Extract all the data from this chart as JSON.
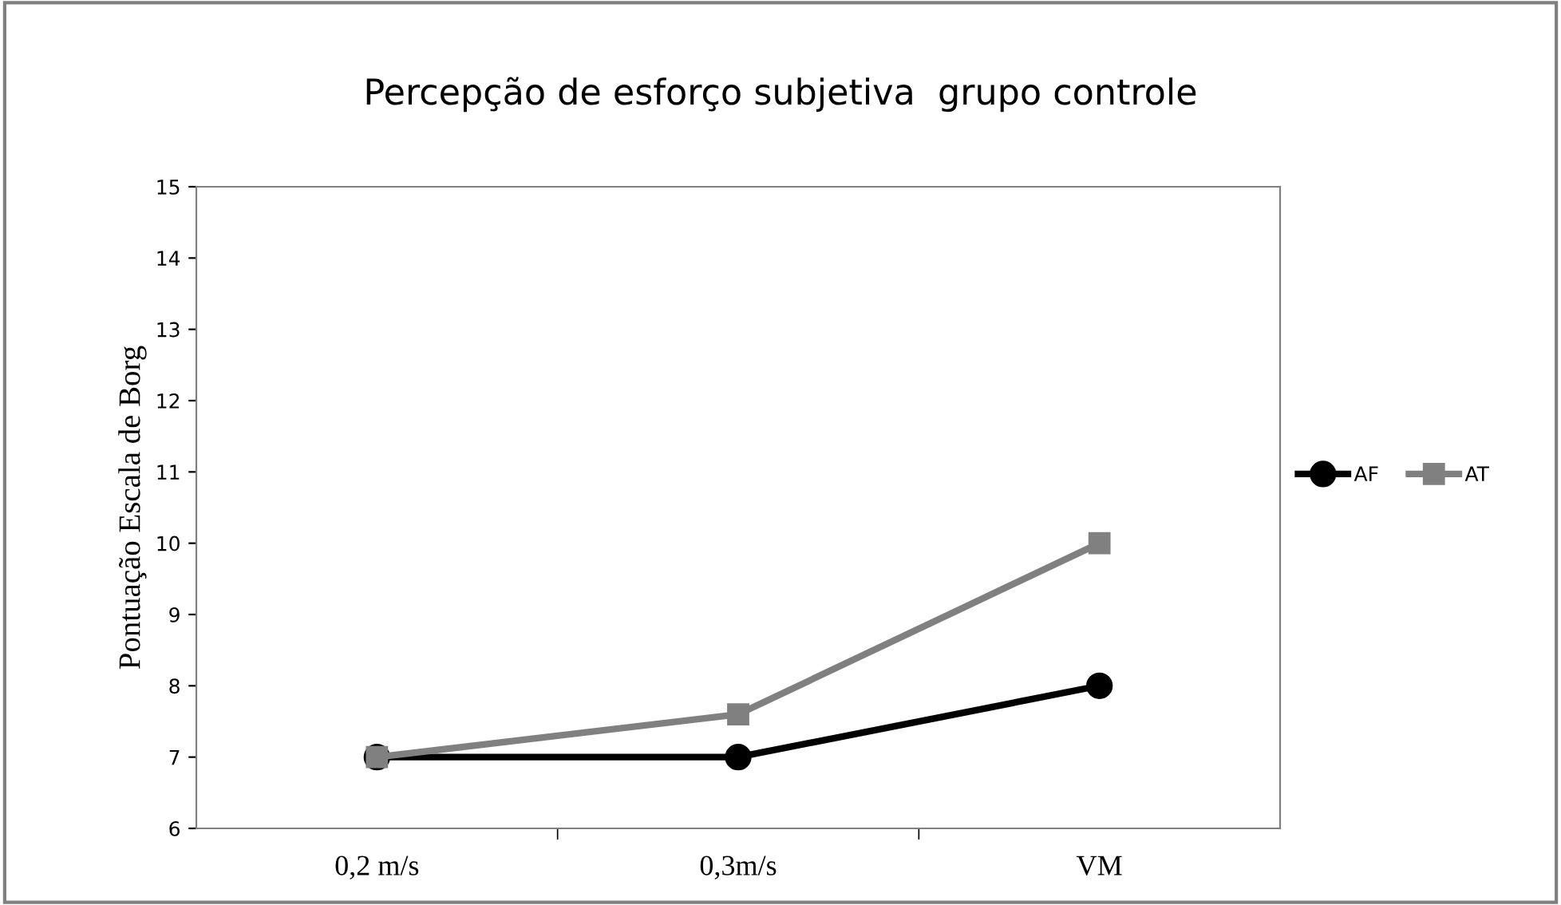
{
  "chart_data": {
    "type": "line",
    "title": "Percepção de esforço subjetiva  grupo controle",
    "ylabel": "Pontuação Escala de Borg",
    "categories": [
      "0,2 m/s",
      "0,3m/s",
      "VM"
    ],
    "series": [
      {
        "name": "AF",
        "color": "#000000",
        "marker": "circle",
        "values": [
          7,
          7,
          8
        ]
      },
      {
        "name": "AT",
        "color": "#808080",
        "marker": "square",
        "values": [
          7,
          7.6,
          10
        ]
      }
    ],
    "ylim": [
      6,
      15
    ],
    "yticks": [
      6,
      7,
      8,
      9,
      10,
      11,
      12,
      13,
      14,
      15
    ],
    "grid": false,
    "legend": "right"
  }
}
